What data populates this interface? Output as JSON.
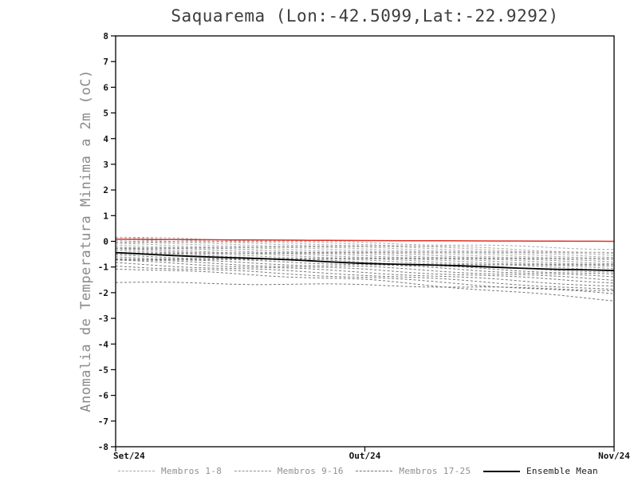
{
  "page": {
    "background": "#ffffff"
  },
  "chart_data": {
    "type": "line",
    "title": "Saquarema (Lon:-42.5099,Lat:-22.9292)",
    "ylabel": "Anomalia de Temperatura Minima a 2m (oC)",
    "xlabel": "",
    "x_tick_labels": [
      "Set/24",
      "Out/24",
      "Nov/24"
    ],
    "ylim": [
      -8,
      8
    ],
    "ytick_step": 1,
    "grid": false,
    "legend_position": "bottom",
    "axis_color": "#000000",
    "tick_label_color": "#111111",
    "reference_line": {
      "name": "reference-zero-line",
      "color": "#e03127",
      "values": [
        0.08,
        0.03,
        0.0
      ]
    },
    "ensemble_mean": {
      "name": "Ensemble Mean",
      "color": "#000000",
      "style": "solid",
      "values": [
        -0.45,
        -0.85,
        -1.15
      ]
    },
    "member_groups": [
      {
        "name": "Membros 1-8",
        "color": "#a8a8a8",
        "style": "dashed",
        "members": [
          [
            0.15,
            -0.05,
            -0.3
          ],
          [
            0.12,
            -0.1,
            -0.45
          ],
          [
            0.08,
            -0.15,
            -0.5
          ],
          [
            0.05,
            -0.2,
            -0.55
          ],
          [
            0.0,
            -0.25,
            -0.6
          ],
          [
            -0.05,
            -0.3,
            -0.65
          ],
          [
            -0.1,
            -0.35,
            -0.7
          ],
          [
            -0.15,
            -0.4,
            -0.75
          ]
        ]
      },
      {
        "name": "Membros 9-16",
        "color": "#909090",
        "style": "dashed",
        "members": [
          [
            -0.2,
            -0.45,
            -0.8
          ],
          [
            -0.25,
            -0.5,
            -0.85
          ],
          [
            -0.3,
            -0.55,
            -0.9
          ],
          [
            -0.32,
            -0.6,
            -0.95
          ],
          [
            -0.35,
            -0.65,
            -1.0
          ],
          [
            -0.4,
            -0.7,
            -1.05
          ],
          [
            -0.45,
            -0.75,
            -1.1
          ],
          [
            -0.5,
            -0.8,
            -1.2
          ]
        ]
      },
      {
        "name": "Membros 17-25",
        "color": "#767676",
        "style": "dashed",
        "members": [
          [
            -0.55,
            -0.85,
            -1.3
          ],
          [
            -0.6,
            -0.9,
            -1.4
          ],
          [
            -0.65,
            -1.0,
            -1.5
          ],
          [
            -0.7,
            -1.1,
            -1.6
          ],
          [
            -0.75,
            -1.2,
            -1.75
          ],
          [
            -0.85,
            -1.3,
            -1.9
          ],
          [
            -0.95,
            -1.4,
            -2.05
          ],
          [
            -1.05,
            -1.5,
            -2.3
          ],
          [
            -1.6,
            -1.7,
            -1.9
          ]
        ]
      }
    ]
  },
  "legend": {
    "items": [
      {
        "label": "Membros 1-8",
        "style": "dashed",
        "color": "#a8a8a8",
        "label_color": "#8f8f8f"
      },
      {
        "label": "Membros 9-16",
        "style": "dashed",
        "color": "#909090",
        "label_color": "#8f8f8f"
      },
      {
        "label": "Membros 17-25",
        "style": "dashed",
        "color": "#767676",
        "label_color": "#8f8f8f"
      },
      {
        "label": "Ensemble Mean",
        "style": "solid",
        "color": "#000000",
        "label_color": "#1a1a1a"
      }
    ]
  }
}
